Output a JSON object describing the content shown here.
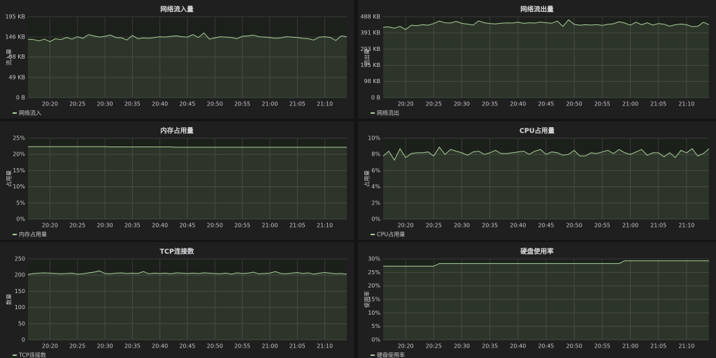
{
  "chart_data": [
    {
      "type": "line",
      "title": "网络流入量",
      "ylabel": "流入量",
      "legend": "bottom-left",
      "grid": true,
      "x": [
        "20:16",
        "20:17",
        "20:18",
        "20:19",
        "20:20",
        "20:21",
        "20:22",
        "20:23",
        "20:24",
        "20:25",
        "20:26",
        "20:27",
        "20:28",
        "20:29",
        "20:30",
        "20:31",
        "20:32",
        "20:33",
        "20:34",
        "20:35",
        "20:36",
        "20:37",
        "20:38",
        "20:39",
        "20:40",
        "20:41",
        "20:42",
        "20:43",
        "20:44",
        "20:45",
        "20:46",
        "20:47",
        "20:48",
        "20:49",
        "20:50",
        "20:51",
        "20:52",
        "20:53",
        "20:54",
        "20:55",
        "20:56",
        "20:57",
        "20:58",
        "20:59",
        "21:00",
        "21:01",
        "21:02",
        "21:03",
        "21:04",
        "21:05",
        "21:06",
        "21:07",
        "21:08",
        "21:09",
        "21:10",
        "21:11",
        "21:12",
        "21:13",
        "21:14"
      ],
      "xticks": [
        "20:20",
        "20:25",
        "20:30",
        "20:35",
        "20:40",
        "20:45",
        "20:50",
        "20:55",
        "21:00",
        "21:05",
        "21:10"
      ],
      "ylim": [
        0,
        195
      ],
      "yticks": [
        {
          "value": 0,
          "label": "0 B"
        },
        {
          "value": 49,
          "label": "49 KB"
        },
        {
          "value": 98,
          "label": "98 KB"
        },
        {
          "value": 146,
          "label": "146 KB"
        },
        {
          "value": 195,
          "label": "195 KB"
        }
      ],
      "series": [
        {
          "name": "网络流入",
          "color": "#a9cf9a",
          "values": [
            141,
            140,
            137,
            141,
            135,
            142,
            140,
            145,
            141,
            147,
            143,
            152,
            149,
            146,
            148,
            151,
            145,
            144,
            139,
            150,
            142,
            144,
            143,
            145,
            147,
            146,
            148,
            149,
            147,
            146,
            152,
            145,
            156,
            141,
            144,
            147,
            146,
            145,
            142,
            148,
            149,
            151,
            147,
            146,
            145,
            143,
            144,
            147,
            146,
            145,
            143,
            142,
            139,
            146,
            147,
            145,
            138,
            149,
            147
          ]
        }
      ]
    },
    {
      "type": "line",
      "title": "网络流出量",
      "ylabel": "流出量",
      "legend": "bottom-left",
      "grid": true,
      "x": [
        "20:16",
        "20:17",
        "20:18",
        "20:19",
        "20:20",
        "20:21",
        "20:22",
        "20:23",
        "20:24",
        "20:25",
        "20:26",
        "20:27",
        "20:28",
        "20:29",
        "20:30",
        "20:31",
        "20:32",
        "20:33",
        "20:34",
        "20:35",
        "20:36",
        "20:37",
        "20:38",
        "20:39",
        "20:40",
        "20:41",
        "20:42",
        "20:43",
        "20:44",
        "20:45",
        "20:46",
        "20:47",
        "20:48",
        "20:49",
        "20:50",
        "20:51",
        "20:52",
        "20:53",
        "20:54",
        "20:55",
        "20:56",
        "20:57",
        "20:58",
        "20:59",
        "21:00",
        "21:01",
        "21:02",
        "21:03",
        "21:04",
        "21:05",
        "21:06",
        "21:07",
        "21:08",
        "21:09",
        "21:10",
        "21:11",
        "21:12",
        "21:13",
        "21:14"
      ],
      "xticks": [
        "20:20",
        "20:25",
        "20:30",
        "20:35",
        "20:40",
        "20:45",
        "20:50",
        "20:55",
        "21:00",
        "21:05",
        "21:10"
      ],
      "ylim": [
        0,
        488
      ],
      "yticks": [
        {
          "value": 0,
          "label": "0 B"
        },
        {
          "value": 98,
          "label": "98 KB"
        },
        {
          "value": 195,
          "label": "195 KB"
        },
        {
          "value": 293,
          "label": "293 KB"
        },
        {
          "value": 391,
          "label": "391 KB"
        },
        {
          "value": 488,
          "label": "488 KB"
        }
      ],
      "series": [
        {
          "name": "网络流出",
          "color": "#a9cf9a",
          "values": [
            425,
            427,
            419,
            430,
            411,
            437,
            434,
            440,
            437,
            447,
            462,
            452,
            450,
            460,
            448,
            444,
            438,
            463,
            452,
            447,
            445,
            449,
            451,
            450,
            455,
            448,
            452,
            450,
            456,
            452,
            449,
            462,
            430,
            470,
            442,
            437,
            440,
            438,
            441,
            436,
            442,
            446,
            458,
            450,
            437,
            455,
            440,
            452,
            438,
            447,
            443,
            431,
            440,
            444,
            440,
            428,
            430,
            455,
            440
          ]
        }
      ]
    },
    {
      "type": "line",
      "title": "内存占用量",
      "ylabel": "占用量",
      "legend": "bottom-left",
      "grid": true,
      "x": [
        "20:16",
        "20:17",
        "20:18",
        "20:19",
        "20:20",
        "20:21",
        "20:22",
        "20:23",
        "20:24",
        "20:25",
        "20:26",
        "20:27",
        "20:28",
        "20:29",
        "20:30",
        "20:31",
        "20:32",
        "20:33",
        "20:34",
        "20:35",
        "20:36",
        "20:37",
        "20:38",
        "20:39",
        "20:40",
        "20:41",
        "20:42",
        "20:43",
        "20:44",
        "20:45",
        "20:46",
        "20:47",
        "20:48",
        "20:49",
        "20:50",
        "20:51",
        "20:52",
        "20:53",
        "20:54",
        "20:55",
        "20:56",
        "20:57",
        "20:58",
        "20:59",
        "21:00",
        "21:01",
        "21:02",
        "21:03",
        "21:04",
        "21:05",
        "21:06",
        "21:07",
        "21:08",
        "21:09",
        "21:10",
        "21:11",
        "21:12",
        "21:13",
        "21:14"
      ],
      "xticks": [
        "20:20",
        "20:25",
        "20:30",
        "20:35",
        "20:40",
        "20:45",
        "20:50",
        "20:55",
        "21:00",
        "21:05",
        "21:10"
      ],
      "ylim": [
        0,
        25
      ],
      "yticks": [
        {
          "value": 0,
          "label": "0%"
        },
        {
          "value": 5,
          "label": "5%"
        },
        {
          "value": 10,
          "label": "10%"
        },
        {
          "value": 15,
          "label": "15%"
        },
        {
          "value": 20,
          "label": "20%"
        },
        {
          "value": 25,
          "label": "25%"
        }
      ],
      "series": [
        {
          "name": "内存占用量",
          "color": "#a9cf9a",
          "values": [
            22.4,
            22.4,
            22.4,
            22.4,
            22.4,
            22.4,
            22.4,
            22.4,
            22.4,
            22.4,
            22.4,
            22.4,
            22.4,
            22.4,
            22.4,
            22.3,
            22.3,
            22.3,
            22.3,
            22.3,
            22.3,
            22.3,
            22.3,
            22.3,
            22.3,
            22.3,
            22.3,
            22.2,
            22.2,
            22.2,
            22.2,
            22.2,
            22.2,
            22.2,
            22.2,
            22.2,
            22.2,
            22.2,
            22.2,
            22.2,
            22.2,
            22.2,
            22.2,
            22.2,
            22.2,
            22.2,
            22.2,
            22.2,
            22.2,
            22.2,
            22.2,
            22.2,
            22.2,
            22.2,
            22.2,
            22.2,
            22.2,
            22.2,
            22.2
          ]
        }
      ]
    },
    {
      "type": "line",
      "title": "CPU占用量",
      "ylabel": "占用量",
      "legend": "bottom-left",
      "grid": true,
      "x": [
        "20:16",
        "20:17",
        "20:18",
        "20:19",
        "20:20",
        "20:21",
        "20:22",
        "20:23",
        "20:24",
        "20:25",
        "20:26",
        "20:27",
        "20:28",
        "20:29",
        "20:30",
        "20:31",
        "20:32",
        "20:33",
        "20:34",
        "20:35",
        "20:36",
        "20:37",
        "20:38",
        "20:39",
        "20:40",
        "20:41",
        "20:42",
        "20:43",
        "20:44",
        "20:45",
        "20:46",
        "20:47",
        "20:48",
        "20:49",
        "20:50",
        "20:51",
        "20:52",
        "20:53",
        "20:54",
        "20:55",
        "20:56",
        "20:57",
        "20:58",
        "20:59",
        "21:00",
        "21:01",
        "21:02",
        "21:03",
        "21:04",
        "21:05",
        "21:06",
        "21:07",
        "21:08",
        "21:09",
        "21:10",
        "21:11",
        "21:12",
        "21:13",
        "21:14"
      ],
      "xticks": [
        "20:20",
        "20:25",
        "20:30",
        "20:35",
        "20:40",
        "20:45",
        "20:50",
        "20:55",
        "21:00",
        "21:05",
        "21:10"
      ],
      "ylim": [
        0,
        10
      ],
      "yticks": [
        {
          "value": 0,
          "label": "0%"
        },
        {
          "value": 2,
          "label": "2%"
        },
        {
          "value": 4,
          "label": "4%"
        },
        {
          "value": 6,
          "label": "6%"
        },
        {
          "value": 8,
          "label": "8%"
        },
        {
          "value": 10,
          "label": "10%"
        }
      ],
      "series": [
        {
          "name": "CPU占用量",
          "color": "#a9cf9a",
          "values": [
            7.8,
            8.4,
            7.3,
            8.7,
            7.6,
            8.1,
            8.2,
            8.2,
            8.3,
            7.8,
            8.9,
            8.0,
            8.6,
            8.4,
            8.2,
            7.9,
            8.3,
            8.4,
            8.0,
            8.2,
            8.5,
            8.1,
            8.1,
            8.2,
            8.3,
            8.4,
            8.0,
            8.4,
            8.6,
            8.0,
            8.3,
            8.2,
            7.9,
            8.0,
            8.5,
            7.8,
            7.8,
            8.2,
            8.1,
            8.3,
            8.5,
            8.1,
            8.6,
            8.2,
            8.0,
            8.3,
            8.6,
            7.9,
            8.2,
            8.2,
            7.7,
            8.2,
            7.6,
            8.5,
            8.2,
            8.7,
            7.8,
            8.1,
            8.7
          ]
        }
      ]
    },
    {
      "type": "line",
      "title": "TCP连接数",
      "ylabel": "数量",
      "legend": "bottom-left",
      "grid": true,
      "x": [
        "20:16",
        "20:17",
        "20:18",
        "20:19",
        "20:20",
        "20:21",
        "20:22",
        "20:23",
        "20:24",
        "20:25",
        "20:26",
        "20:27",
        "20:28",
        "20:29",
        "20:30",
        "20:31",
        "20:32",
        "20:33",
        "20:34",
        "20:35",
        "20:36",
        "20:37",
        "20:38",
        "20:39",
        "20:40",
        "20:41",
        "20:42",
        "20:43",
        "20:44",
        "20:45",
        "20:46",
        "20:47",
        "20:48",
        "20:49",
        "20:50",
        "20:51",
        "20:52",
        "20:53",
        "20:54",
        "20:55",
        "20:56",
        "20:57",
        "20:58",
        "20:59",
        "21:00",
        "21:01",
        "21:02",
        "21:03",
        "21:04",
        "21:05",
        "21:06",
        "21:07",
        "21:08",
        "21:09",
        "21:10",
        "21:11",
        "21:12",
        "21:13",
        "21:14"
      ],
      "xticks": [
        "20:20",
        "20:25",
        "20:30",
        "20:35",
        "20:40",
        "20:45",
        "20:50",
        "20:55",
        "21:00",
        "21:05",
        "21:10"
      ],
      "ylim": [
        0,
        250
      ],
      "yticks": [
        0,
        50,
        100,
        150,
        200,
        250
      ],
      "series": [
        {
          "name": "TCP连接数",
          "color": "#a9cf9a",
          "values": [
            202,
            205,
            206,
            207,
            206,
            205,
            204,
            205,
            206,
            203,
            204,
            207,
            209,
            213,
            205,
            204,
            206,
            207,
            205,
            206,
            205,
            211,
            204,
            206,
            205,
            206,
            204,
            207,
            206,
            205,
            206,
            205,
            207,
            206,
            205,
            204,
            206,
            203,
            207,
            205,
            206,
            209,
            204,
            205,
            206,
            211,
            205,
            204,
            206,
            208,
            205,
            207,
            203,
            206,
            208,
            206,
            204,
            205,
            203
          ]
        }
      ]
    },
    {
      "type": "line",
      "title": "硬盘使用率",
      "ylabel": "使用率",
      "legend": "bottom-left",
      "grid": true,
      "x": [
        "20:16",
        "20:17",
        "20:18",
        "20:19",
        "20:20",
        "20:21",
        "20:22",
        "20:23",
        "20:24",
        "20:25",
        "20:26",
        "20:27",
        "20:28",
        "20:29",
        "20:30",
        "20:31",
        "20:32",
        "20:33",
        "20:34",
        "20:35",
        "20:36",
        "20:37",
        "20:38",
        "20:39",
        "20:40",
        "20:41",
        "20:42",
        "20:43",
        "20:44",
        "20:45",
        "20:46",
        "20:47",
        "20:48",
        "20:49",
        "20:50",
        "20:51",
        "20:52",
        "20:53",
        "20:54",
        "20:55",
        "20:56",
        "20:57",
        "20:58",
        "20:59",
        "21:00",
        "21:01",
        "21:02",
        "21:03",
        "21:04",
        "21:05",
        "21:06",
        "21:07",
        "21:08",
        "21:09",
        "21:10",
        "21:11",
        "21:12",
        "21:13",
        "21:14"
      ],
      "xticks": [
        "20:20",
        "20:25",
        "20:30",
        "20:35",
        "20:40",
        "20:45",
        "20:50",
        "20:55",
        "21:00",
        "21:05",
        "21:10"
      ],
      "ylim": [
        0,
        30
      ],
      "yticks": [
        {
          "value": 0,
          "label": "0%"
        },
        {
          "value": 5,
          "label": "5%"
        },
        {
          "value": 10,
          "label": "10%"
        },
        {
          "value": 15,
          "label": "15%"
        },
        {
          "value": 20,
          "label": "20%"
        },
        {
          "value": 25,
          "label": "25%"
        },
        {
          "value": 30,
          "label": "30%"
        }
      ],
      "series": [
        {
          "name": "硬盘使用率",
          "color": "#a9cf9a",
          "values": [
            27.3,
            27.3,
            27.3,
            27.3,
            27.3,
            27.3,
            27.3,
            27.3,
            27.3,
            27.3,
            28.3,
            28.3,
            28.3,
            28.3,
            28.3,
            28.3,
            28.3,
            28.3,
            28.3,
            28.3,
            28.3,
            28.3,
            28.3,
            28.3,
            28.3,
            28.3,
            28.3,
            28.3,
            28.3,
            28.3,
            28.3,
            28.3,
            28.3,
            28.3,
            28.3,
            28.3,
            28.3,
            28.3,
            28.3,
            28.3,
            28.3,
            28.3,
            28.3,
            29.3,
            29.3,
            29.3,
            29.3,
            29.3,
            29.3,
            29.3,
            29.3,
            29.3,
            29.3,
            29.3,
            29.3,
            29.3,
            29.3,
            29.3,
            29.3
          ]
        }
      ]
    }
  ]
}
